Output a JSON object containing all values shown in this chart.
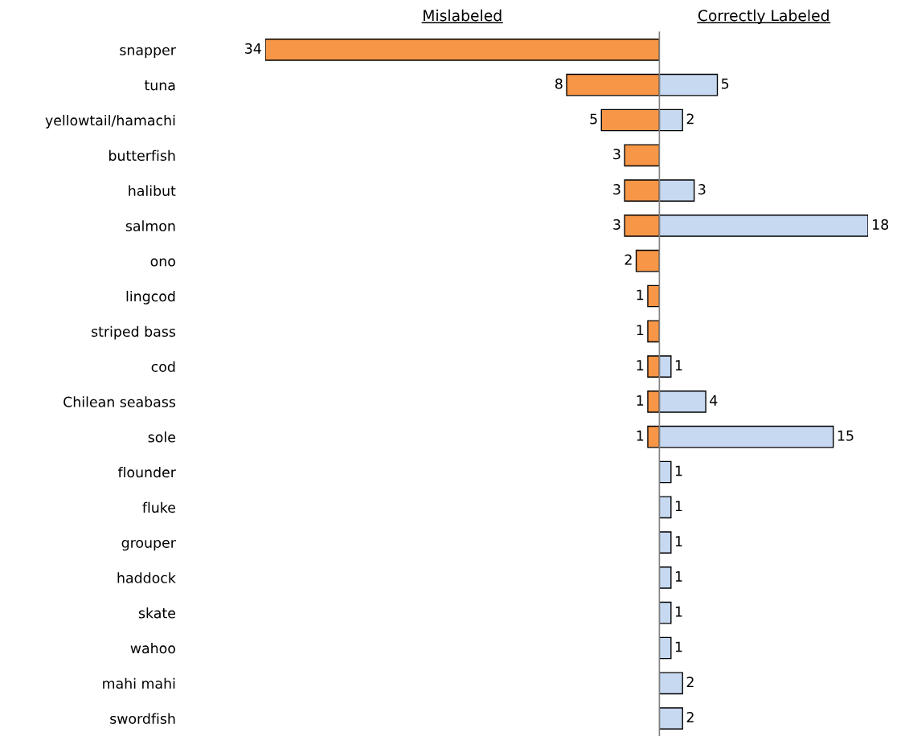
{
  "chart_data": [
    {
      "type": "bar",
      "orientation": "horizontal",
      "title": "Mislabeled",
      "categories": [
        "snapper",
        "tuna",
        "yellowtail/hamachi",
        "butterfish",
        "halibut",
        "salmon",
        "ono",
        "lingcod",
        "striped bass",
        "cod",
        "Chilean seabass",
        "sole",
        "flounder",
        "fluke",
        "grouper",
        "haddock",
        "skate",
        "wahoo",
        "mahi mahi",
        "swordfish"
      ],
      "series": [
        {
          "color": "#f79646",
          "values": [
            34,
            8,
            5,
            3,
            3,
            3,
            2,
            1,
            1,
            1,
            1,
            1,
            null,
            null,
            null,
            null,
            null,
            null,
            null,
            null
          ]
        }
      ],
      "xlim": [
        34,
        0
      ],
      "data_labels": true,
      "tick_labels": "y"
    },
    {
      "type": "bar",
      "orientation": "horizontal",
      "title": "Correctly Labeled",
      "series": [
        {
          "color": "#c6d9f1",
          "values": [
            null,
            5,
            2,
            null,
            3,
            18,
            null,
            null,
            null,
            1,
            4,
            15,
            1,
            1,
            1,
            1,
            1,
            1,
            2,
            2
          ]
        }
      ],
      "xlim": [
        0,
        18
      ],
      "data_labels": true,
      "tick_labels": false
    }
  ]
}
